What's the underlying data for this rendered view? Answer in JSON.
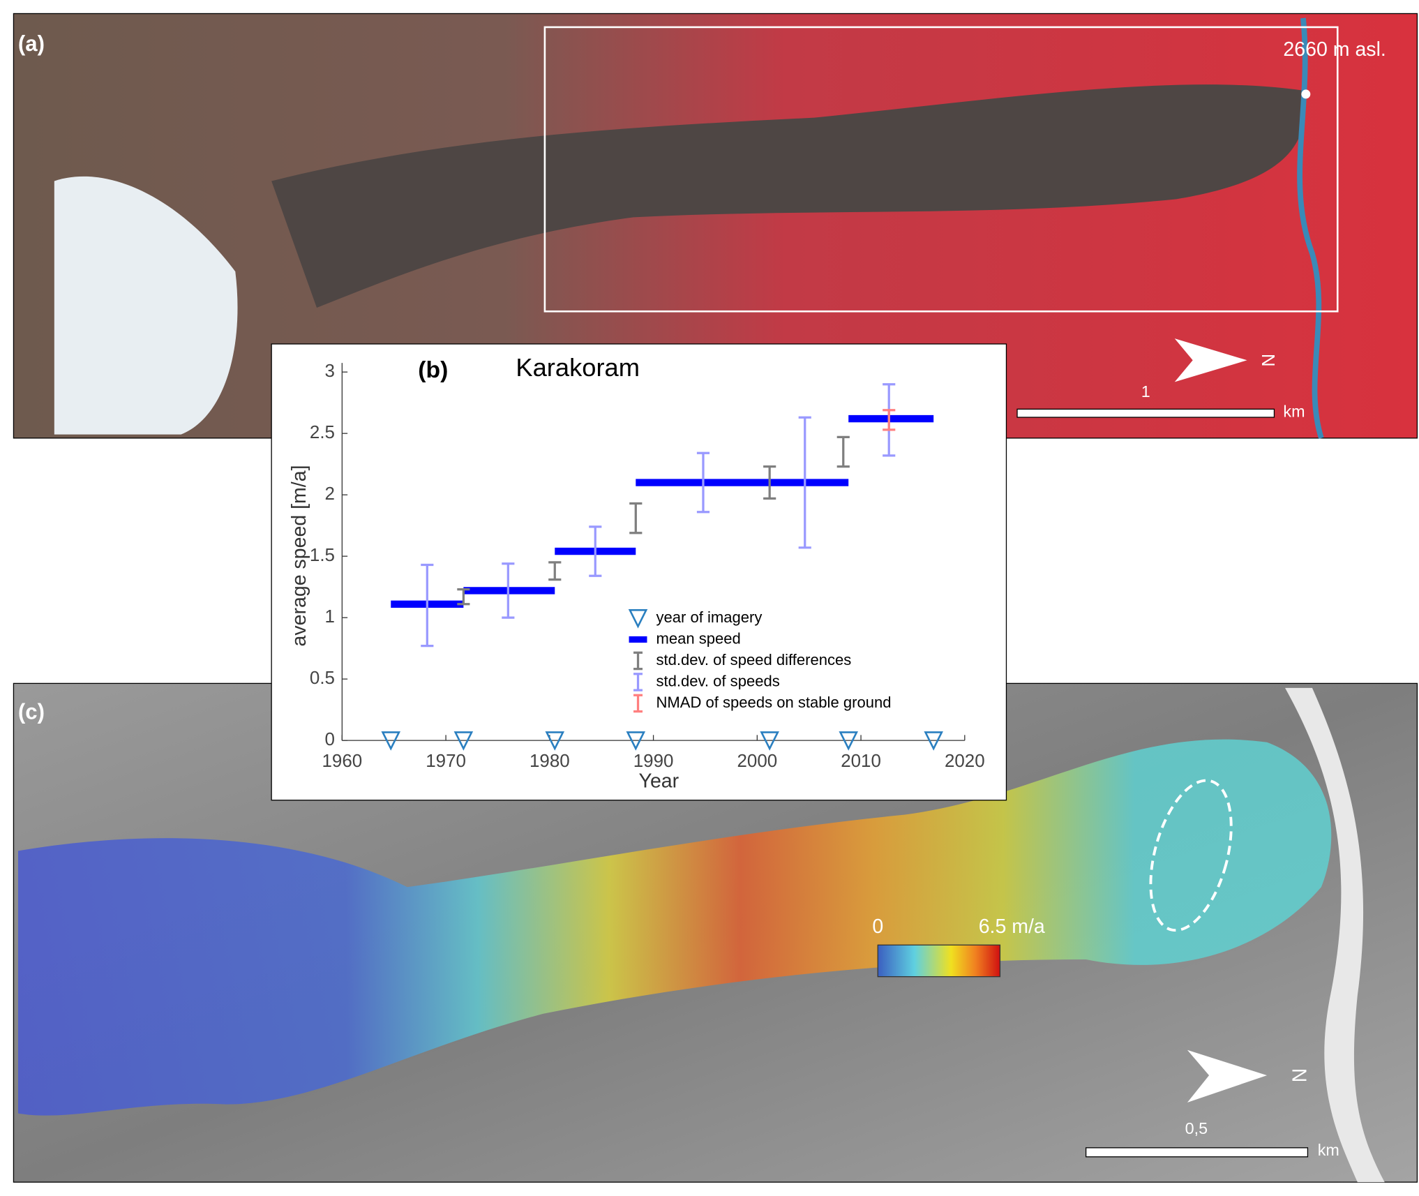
{
  "panels": {
    "a": {
      "label": "(a)",
      "elevation": "2660 m asl.",
      "scale_value": "1",
      "scale_unit": "km",
      "north": "N"
    },
    "c": {
      "label": "(c)",
      "colorbar_min": "0",
      "colorbar_max": "6.5 m/a",
      "scale_value": "0,5",
      "scale_unit": "km",
      "north": "N"
    }
  },
  "chart_data": {
    "type": "errorbar",
    "panel_label": "(b)",
    "title": "Karakoram",
    "x_label": "Year",
    "y_label": "average speed [m/a]",
    "xlim": [
      1960,
      2020
    ],
    "xticks": [
      1960,
      1970,
      1980,
      1990,
      2000,
      2010,
      2020
    ],
    "ylim": [
      0,
      3
    ],
    "yticks": [
      0,
      0.5,
      1,
      1.5,
      2,
      2.5,
      3
    ],
    "legend": "lower right",
    "series": [
      {
        "name": "year of imagery",
        "kind": "marker",
        "color": "#2a7fc0",
        "x": [
          1964.7,
          1971.7,
          1980.5,
          1988.3,
          2001.2,
          2008.8,
          2017.0
        ],
        "values": [
          0,
          0,
          0,
          0,
          0,
          0,
          0
        ]
      },
      {
        "name": "mean speed",
        "kind": "step",
        "color": "#0000ff",
        "x": [
          1964.7,
          1971.7,
          1980.5,
          1988.3,
          2008.8
        ],
        "x_end": [
          1971.7,
          1980.5,
          1988.3,
          2008.8,
          2017.0
        ],
        "values": [
          1.11,
          1.22,
          1.54,
          2.1,
          2.62
        ]
      },
      {
        "name": "std.dev. of speed differences",
        "kind": "errorbar",
        "color": "#7f7f7f",
        "x": [
          1971.7,
          1980.5,
          1988.3,
          2001.2,
          2008.3
        ],
        "values": [
          1.17,
          1.38,
          1.81,
          2.1,
          2.35
        ],
        "errors": [
          0.06,
          0.07,
          0.12,
          0.13,
          0.12
        ]
      },
      {
        "name": "std.dev. of speeds",
        "kind": "errorbar",
        "color": "#9999ff",
        "x": [
          1968.2,
          1976.0,
          1984.4,
          1994.8,
          2004.6,
          2012.7
        ],
        "values": [
          1.1,
          1.22,
          1.54,
          2.1,
          2.1,
          2.61
        ],
        "errors": [
          0.33,
          0.22,
          0.2,
          0.24,
          0.53,
          0.29
        ]
      },
      {
        "name": "NMAD of speeds on stable ground",
        "kind": "errorbar",
        "color": "#ff7f7f",
        "x": [
          2012.7
        ],
        "values": [
          2.61
        ],
        "errors": [
          0.08
        ]
      }
    ]
  }
}
